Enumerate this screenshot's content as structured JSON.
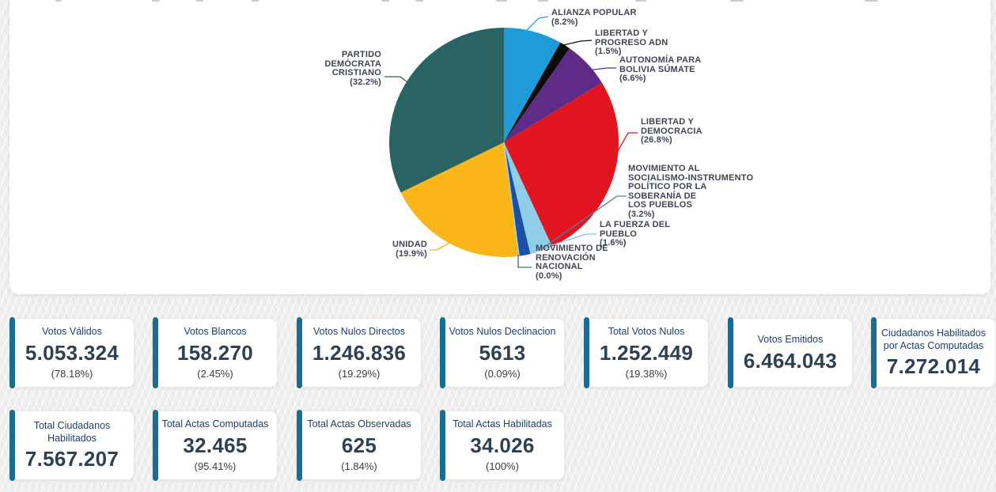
{
  "theme": {
    "page_background": "#efeff0",
    "panel_background": "#ffffff",
    "card_accent": "#1a6c90",
    "card_title_color": "#20406a",
    "card_value_color": "#2e4053",
    "pie_label_color": "#3f4456"
  },
  "chart_data": {
    "type": "pie",
    "title": "",
    "start_angle_deg": 0,
    "direction": "clockwise",
    "legend_position": "callout-labels",
    "slices": [
      {
        "name": "ALIANZA POPULAR",
        "value": 8.2,
        "color": "#1f9cd8",
        "label_lines": [
          "ALIANZA POPULAR",
          "(8.2%)"
        ]
      },
      {
        "name": "LIBERTAD Y PROGRESO ADN",
        "value": 1.5,
        "color": "#0c0c0c",
        "label_lines": [
          "LIBERTAD Y",
          "PROGRESO ADN",
          "(1.5%)"
        ]
      },
      {
        "name": "AUTONOMÍA PARA BOLIVIA SÚMATE",
        "value": 6.6,
        "color": "#5e2b86",
        "label_lines": [
          "AUTONOMÍA PARA",
          "BOLIVIA SÚMATE",
          "(6.6%)"
        ]
      },
      {
        "name": "LIBERTAD Y DEMOCRACIA",
        "value": 26.8,
        "color": "#e1141f",
        "label_lines": [
          "LIBERTAD Y",
          "DEMOCRACIA",
          "(26.8%)"
        ]
      },
      {
        "name": "MOVIMIENTO AL SOCIALISMO-INSTRUMENTO POLÍTICO POR LA SOBERANÍA DE LOS PUEBLOS",
        "value": 3.2,
        "color": "#8fcde9",
        "label_lines": [
          "MOVIMIENTO AL",
          "SOCIALISMO-INSTRUMENTO",
          "POLÍTICO POR LA",
          "SOBERANÍA DE",
          "LOS PUEBLOS",
          "(3.2%)"
        ]
      },
      {
        "name": "LA FUERZA DEL PUEBLO",
        "value": 1.6,
        "color": "#1c50a3",
        "label_lines": [
          "LA FUERZA DEL",
          "PUEBLO",
          "(1.6%)"
        ]
      },
      {
        "name": "MOVIMIENTO DE RENOVACIÓN NACIONAL",
        "value": 0.0,
        "color": "#9ad2ec",
        "label_lines": [
          "MOVIMIENTO DE",
          "RENOVACIÓN",
          "NACIONAL",
          "(0.0%)"
        ]
      },
      {
        "name": "UNIDAD",
        "value": 19.9,
        "color": "#fcb61a",
        "label_lines": [
          "UNIDAD",
          "(19.9%)"
        ]
      },
      {
        "name": "PARTIDO DEMÓCRATA CRISTIANO",
        "value": 32.2,
        "color": "#2a6462",
        "label_lines": [
          "PARTIDO",
          "DEMÓCRATA",
          "CRISTIANO",
          "(32.2%)"
        ]
      }
    ]
  },
  "cards_row1": [
    {
      "title": "Votos Válidos",
      "value": "5.053.324",
      "pct": "(78.18%)"
    },
    {
      "title": "Votos Blancos",
      "value": "158.270",
      "pct": "(2.45%)"
    },
    {
      "title": "Votos Nulos Directos",
      "value": "1.246.836",
      "pct": "(19.29%)"
    },
    {
      "title": "Votos Nulos Declinacion",
      "value": "5613",
      "pct": "(0.09%)"
    },
    {
      "title": "Total Votos Nulos",
      "value": "1.252.449",
      "pct": "(19.38%)"
    },
    {
      "title": "Votos Emitidos",
      "value": "6.464.043"
    },
    {
      "title": "Ciudadanos Habilitados por Actas Computadas",
      "value": "7.272.014"
    }
  ],
  "cards_row2": [
    {
      "title": "Total Ciudadanos Habilitados",
      "value": "7.567.207"
    },
    {
      "title": "Total Actas Computadas",
      "value": "32.465",
      "pct": "(95.41%)"
    },
    {
      "title": "Total Actas Observadas",
      "value": "625",
      "pct": "(1.84%)"
    },
    {
      "title": "Total Actas Habilitadas",
      "value": "34.026",
      "pct": "(100%)"
    }
  ]
}
